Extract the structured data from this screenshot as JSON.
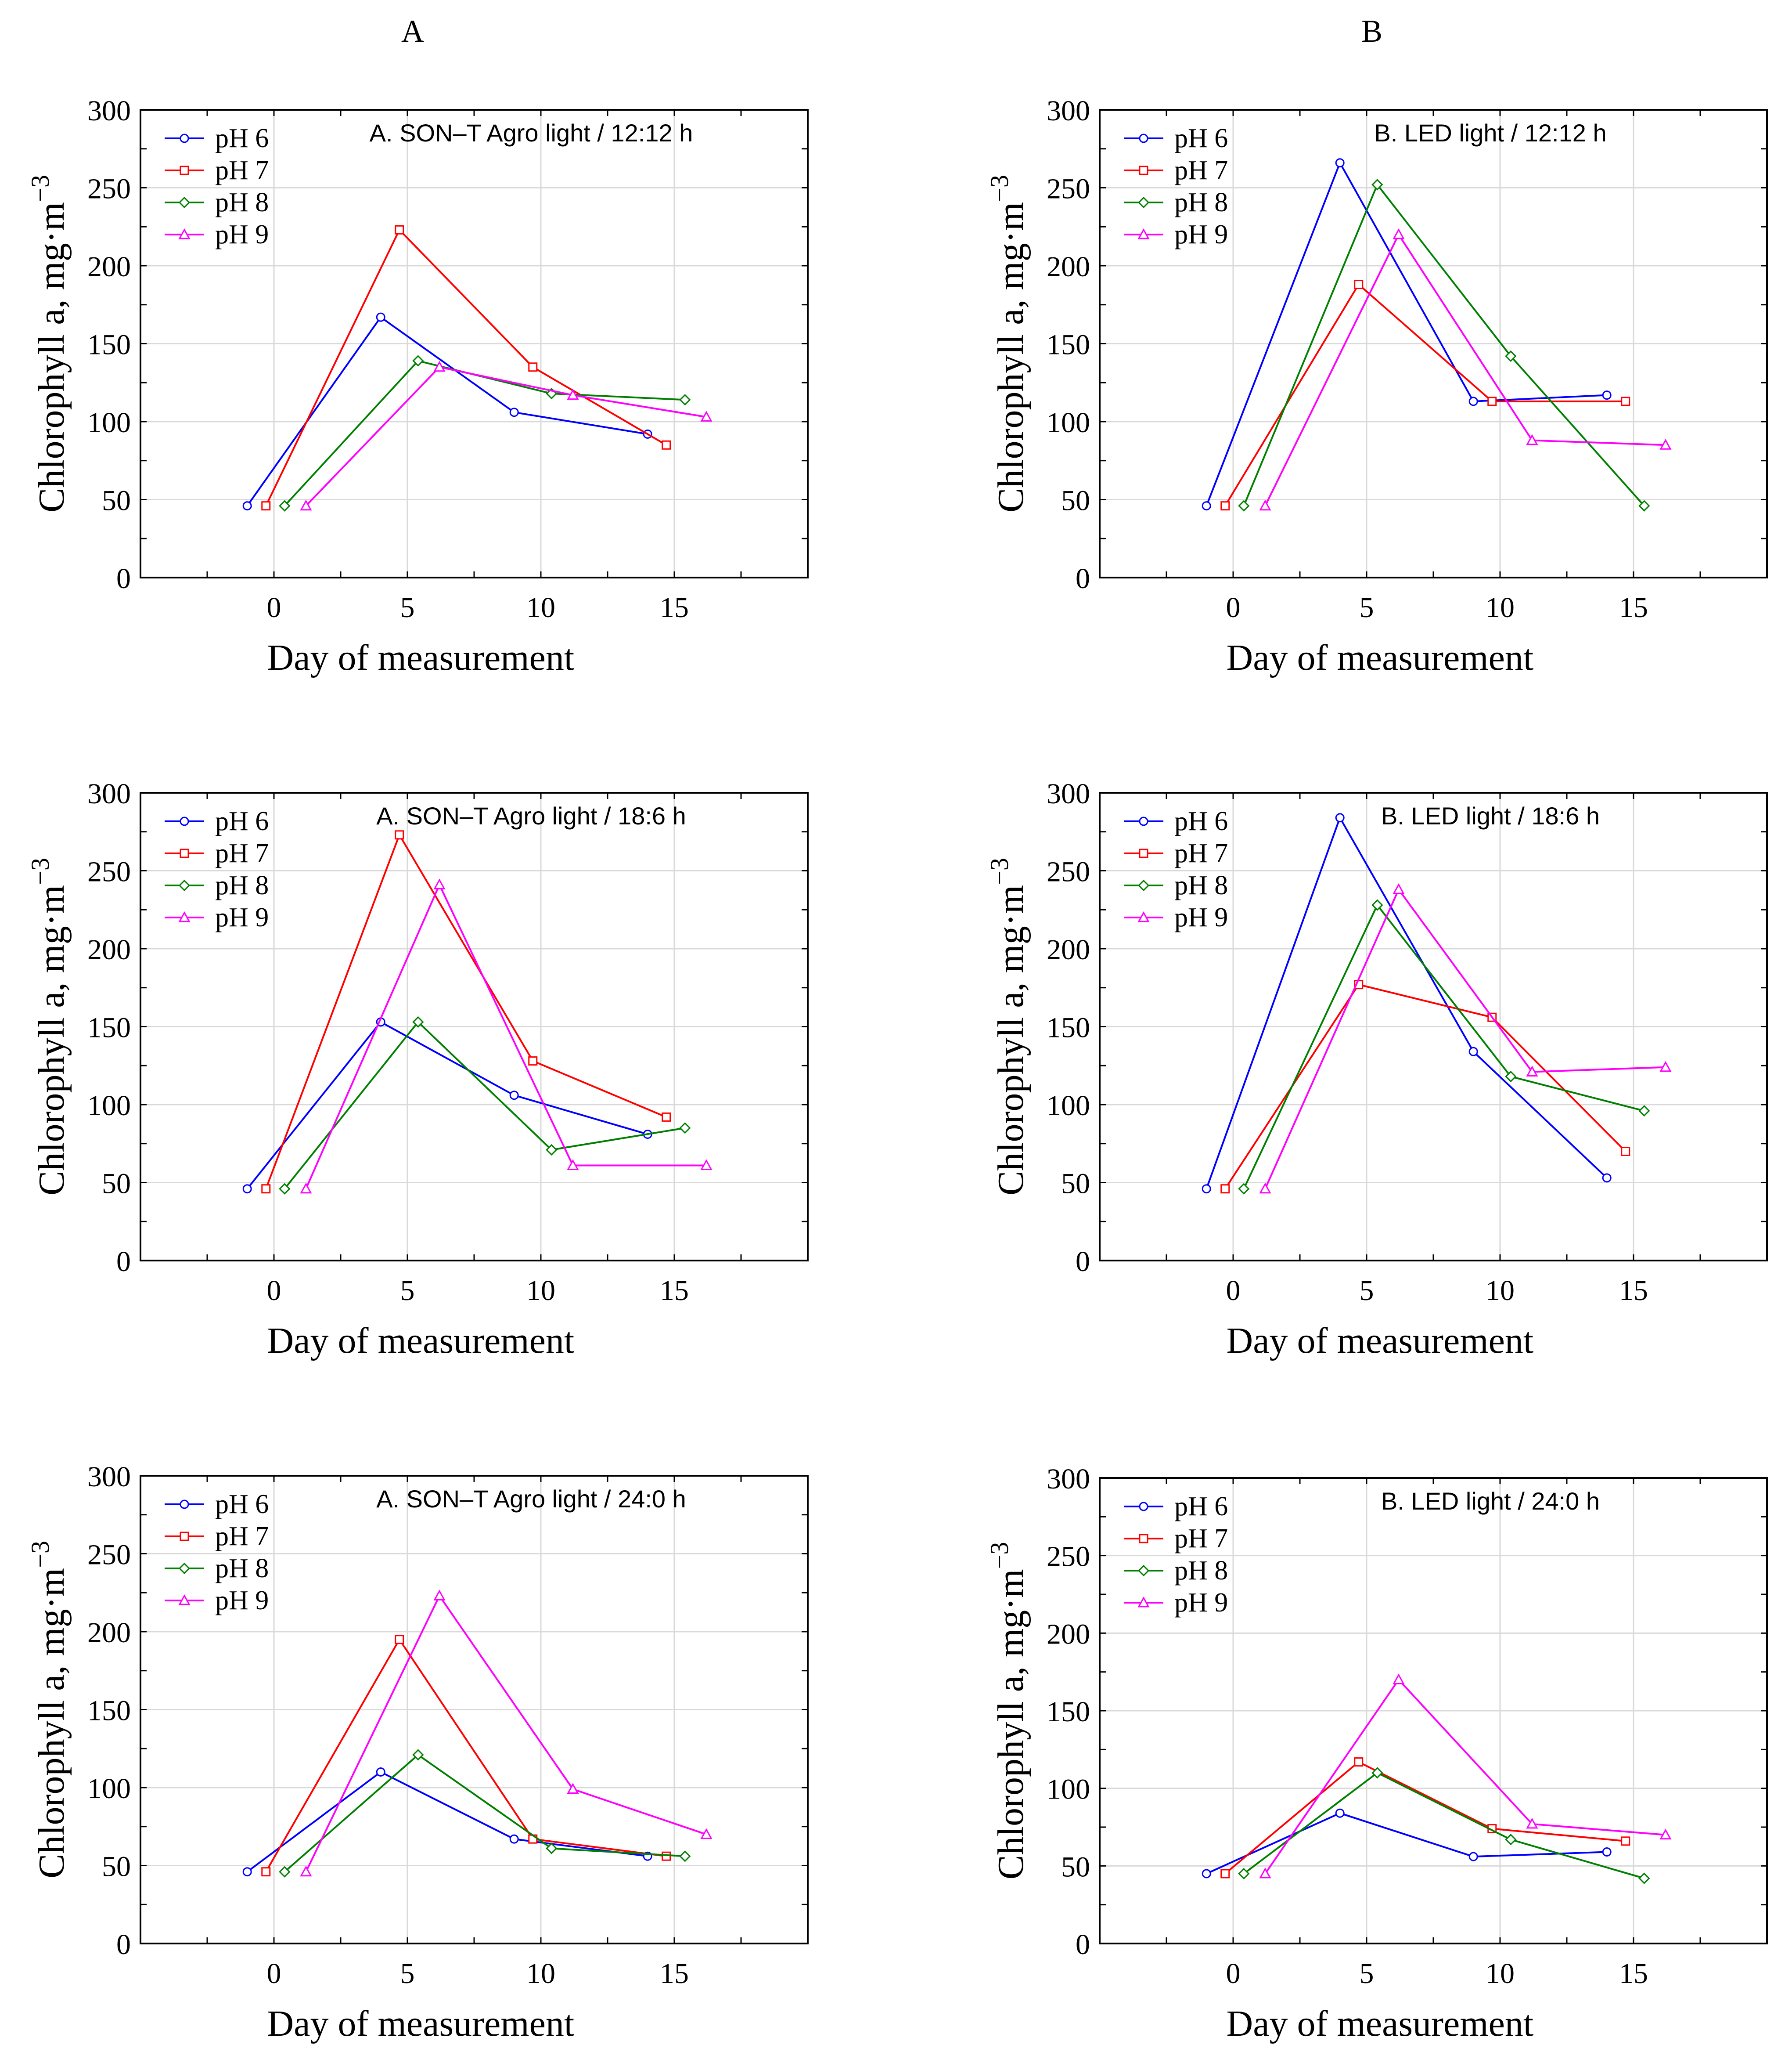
{
  "columns": [
    {
      "label": "A"
    },
    {
      "label": "B"
    }
  ],
  "colors": {
    "pH 6": "#0000ff",
    "pH 7": "#ff0000",
    "pH 8": "#008000",
    "pH 9": "#ff00ff"
  },
  "markers": {
    "pH 6": "circle",
    "pH 7": "square",
    "pH 8": "diamond",
    "pH 9": "triangle"
  },
  "chart_data": [
    {
      "type": "line",
      "title": "A. SON–T Agro light / 12:12 h",
      "xlabel": "Day of measurement",
      "ylabel": "Chlorophyll a, mg·m",
      "ylabel_sup": "−3",
      "xlim": [
        -5,
        20
      ],
      "ylim": [
        0,
        300
      ],
      "xticks": [
        0,
        5,
        10,
        15
      ],
      "yticks": [
        0,
        50,
        100,
        150,
        200,
        250,
        300
      ],
      "grid": true,
      "legend": "top-left",
      "series": [
        {
          "name": "pH 6",
          "x": [
            -1,
            4,
            9,
            14
          ],
          "y": [
            46,
            167,
            106,
            92
          ]
        },
        {
          "name": "pH 7",
          "x": [
            -0.3,
            4.7,
            9.7,
            14.7
          ],
          "y": [
            46,
            223,
            135,
            85
          ]
        },
        {
          "name": "pH 8",
          "x": [
            0.4,
            5.4,
            10.4,
            15.4
          ],
          "y": [
            46,
            139,
            118,
            114
          ]
        },
        {
          "name": "pH 9",
          "x": [
            1.2,
            6.2,
            11.2,
            16.2
          ],
          "y": [
            46,
            135,
            117,
            103
          ]
        }
      ]
    },
    {
      "type": "line",
      "title": "B. LED light / 12:12 h",
      "xlabel": "Day of measurement",
      "ylabel": "Chlorophyll a, mg·m",
      "ylabel_sup": "−3",
      "xlim": [
        -5,
        20
      ],
      "ylim": [
        0,
        300
      ],
      "xticks": [
        0,
        5,
        10,
        15
      ],
      "yticks": [
        0,
        50,
        100,
        150,
        200,
        250,
        300
      ],
      "grid": true,
      "legend": "top-left",
      "series": [
        {
          "name": "pH 6",
          "x": [
            -1,
            4,
            9,
            14
          ],
          "y": [
            46,
            266,
            113,
            117
          ]
        },
        {
          "name": "pH 7",
          "x": [
            -0.3,
            4.7,
            9.7,
            14.7
          ],
          "y": [
            46,
            188,
            113,
            113
          ]
        },
        {
          "name": "pH 8",
          "x": [
            0.4,
            5.4,
            10.4,
            15.4
          ],
          "y": [
            46,
            252,
            142,
            46
          ]
        },
        {
          "name": "pH 9",
          "x": [
            1.2,
            6.2,
            11.2,
            16.2
          ],
          "y": [
            46,
            220,
            88,
            85
          ]
        }
      ]
    },
    {
      "type": "line",
      "title": "A. SON–T Agro light / 18:6 h",
      "xlabel": "Day of measurement",
      "ylabel": "Chlorophyll a, mg·m",
      "ylabel_sup": "−3",
      "xlim": [
        -5,
        20
      ],
      "ylim": [
        0,
        300
      ],
      "xticks": [
        0,
        5,
        10,
        15
      ],
      "yticks": [
        0,
        50,
        100,
        150,
        200,
        250,
        300
      ],
      "grid": true,
      "legend": "top-left",
      "series": [
        {
          "name": "pH 6",
          "x": [
            -1,
            4,
            9,
            14
          ],
          "y": [
            46,
            153,
            106,
            81
          ]
        },
        {
          "name": "pH 7",
          "x": [
            -0.3,
            4.7,
            9.7,
            14.7
          ],
          "y": [
            46,
            273,
            128,
            92
          ]
        },
        {
          "name": "pH 8",
          "x": [
            0.4,
            5.4,
            10.4,
            15.4
          ],
          "y": [
            46,
            153,
            71,
            85
          ]
        },
        {
          "name": "pH 9",
          "x": [
            1.2,
            6.2,
            11.2,
            16.2
          ],
          "y": [
            46,
            241,
            61,
            61
          ]
        }
      ]
    },
    {
      "type": "line",
      "title": "B. LED light / 18:6 h",
      "xlabel": "Day of measurement",
      "ylabel": "Chlorophyll a, mg·m",
      "ylabel_sup": "−3",
      "xlim": [
        -5,
        20
      ],
      "ylim": [
        0,
        300
      ],
      "xticks": [
        0,
        5,
        10,
        15
      ],
      "yticks": [
        0,
        50,
        100,
        150,
        200,
        250,
        300
      ],
      "grid": true,
      "legend": "top-left",
      "series": [
        {
          "name": "pH 6",
          "x": [
            -1,
            4,
            9,
            14
          ],
          "y": [
            46,
            284,
            134,
            53
          ]
        },
        {
          "name": "pH 7",
          "x": [
            -0.3,
            4.7,
            9.7,
            14.7
          ],
          "y": [
            46,
            177,
            156,
            70
          ]
        },
        {
          "name": "pH 8",
          "x": [
            0.4,
            5.4,
            10.4,
            15.4
          ],
          "y": [
            46,
            228,
            118,
            96
          ]
        },
        {
          "name": "pH 9",
          "x": [
            1.2,
            6.2,
            11.2,
            16.2
          ],
          "y": [
            46,
            238,
            121,
            124
          ]
        }
      ]
    },
    {
      "type": "line",
      "title": "A. SON–T Agro light / 24:0 h",
      "xlabel": "Day of measurement",
      "ylabel": "Chlorophyll a, mg·m",
      "ylabel_sup": "−3",
      "xlim": [
        -5,
        20
      ],
      "ylim": [
        0,
        300
      ],
      "xticks": [
        0,
        5,
        10,
        15
      ],
      "yticks": [
        0,
        50,
        100,
        150,
        200,
        250,
        300
      ],
      "grid": true,
      "legend": "top-left",
      "series": [
        {
          "name": "pH 6",
          "x": [
            -1,
            4,
            9,
            14
          ],
          "y": [
            46,
            110,
            67,
            56
          ]
        },
        {
          "name": "pH 7",
          "x": [
            -0.3,
            4.7,
            9.7,
            14.7
          ],
          "y": [
            46,
            195,
            67,
            56
          ]
        },
        {
          "name": "pH 8",
          "x": [
            0.4,
            5.4,
            10.4,
            15.4
          ],
          "y": [
            46,
            121,
            61,
            56
          ]
        },
        {
          "name": "pH 9",
          "x": [
            1.2,
            6.2,
            11.2,
            16.2
          ],
          "y": [
            46,
            223,
            99,
            70
          ]
        }
      ]
    },
    {
      "type": "line",
      "title": "B. LED light / 24:0 h",
      "xlabel": "Day of measurement",
      "ylabel": "Chlorophyll a, mg·m",
      "ylabel_sup": "−3",
      "xlim": [
        -5,
        20
      ],
      "ylim": [
        0,
        300
      ],
      "xticks": [
        0,
        5,
        10,
        15
      ],
      "yticks": [
        0,
        50,
        100,
        150,
        200,
        250,
        300
      ],
      "grid": true,
      "legend": "top-left",
      "series": [
        {
          "name": "pH 6",
          "x": [
            -1,
            4,
            9,
            14
          ],
          "y": [
            45,
            84,
            56,
            59
          ]
        },
        {
          "name": "pH 7",
          "x": [
            -0.3,
            4.7,
            9.7,
            14.7
          ],
          "y": [
            45,
            117,
            74,
            66
          ]
        },
        {
          "name": "pH 8",
          "x": [
            0.4,
            5.4,
            10.4,
            15.4
          ],
          "y": [
            45,
            110,
            67,
            42
          ]
        },
        {
          "name": "pH 9",
          "x": [
            1.2,
            6.2,
            11.2,
            16.2
          ],
          "y": [
            45,
            170,
            77,
            70
          ]
        }
      ]
    }
  ]
}
